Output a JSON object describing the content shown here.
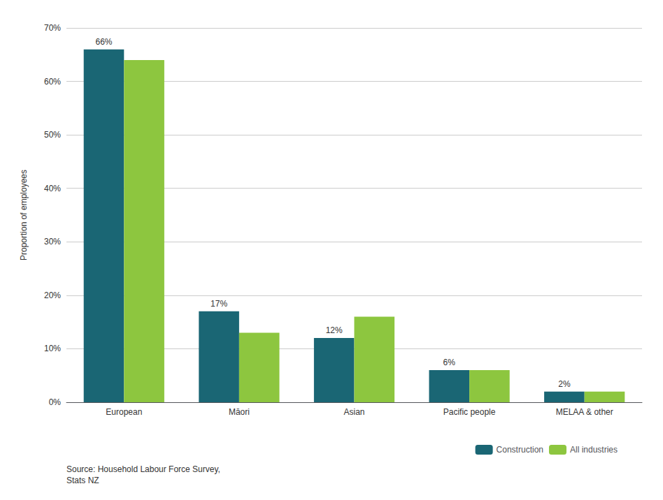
{
  "chart_data": {
    "type": "bar",
    "categories": [
      "European",
      "Māori",
      "Asian",
      "Pacific people",
      "MELAA & other"
    ],
    "series": [
      {
        "name": "Construction",
        "color": "#1a6674",
        "values": [
          0.66,
          0.17,
          0.12,
          0.06,
          0.02
        ],
        "value_labels": [
          "66%",
          "17%",
          "12%",
          "6%",
          "2%"
        ]
      },
      {
        "name": "All industries",
        "color": "#8dc63f",
        "values": [
          0.64,
          0.13,
          0.16,
          0.06,
          0.02
        ]
      }
    ],
    "ylabel": "Proportion of employees",
    "ylim": [
      0,
      0.7
    ],
    "yticks": [
      {
        "value": 0.0,
        "label": "0%"
      },
      {
        "value": 0.1,
        "label": "10%"
      },
      {
        "value": 0.2,
        "label": "20%"
      },
      {
        "value": 0.3,
        "label": "30%"
      },
      {
        "value": 0.4,
        "label": "40%"
      },
      {
        "value": 0.5,
        "label": "50%"
      },
      {
        "value": 0.6,
        "label": "60%"
      },
      {
        "value": 0.7,
        "label": "70%"
      }
    ],
    "grid": true,
    "legend": "bottom",
    "annotations": [
      "Source: Household Labour Force Survey,\nStats NZ"
    ]
  }
}
